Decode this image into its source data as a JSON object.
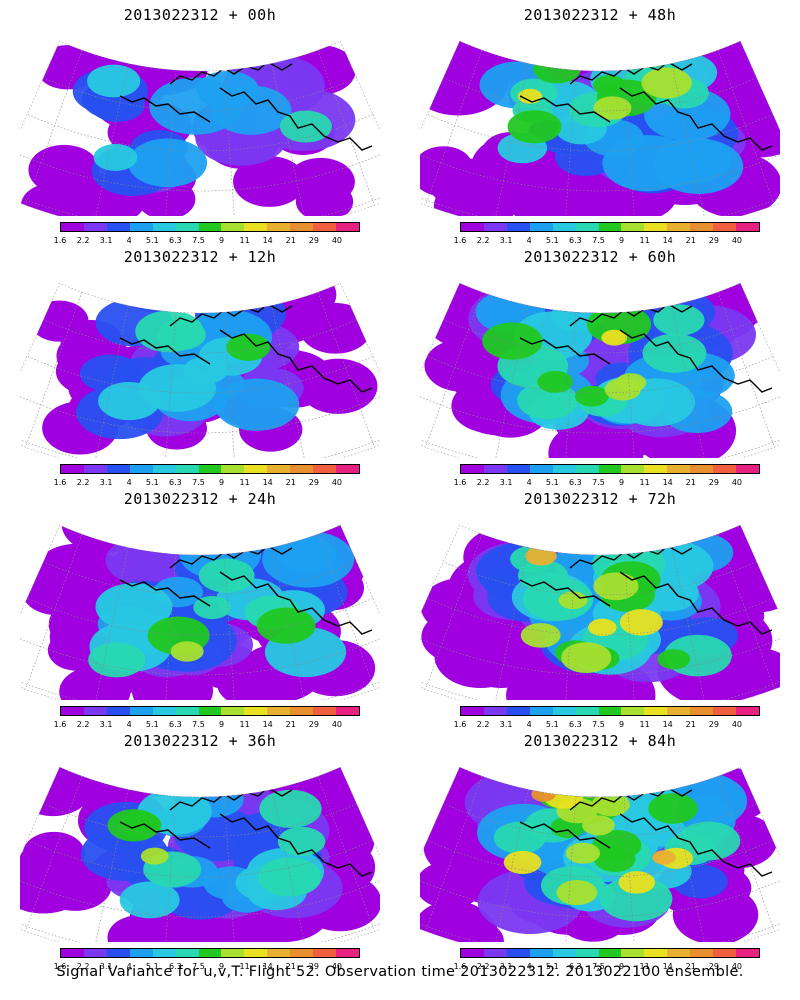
{
  "panels": [
    {
      "title": "2013022312 + 00h",
      "col": 0,
      "row": 0,
      "coverage": 0.3,
      "intensity": 0.35
    },
    {
      "title": "2013022312 + 12h",
      "col": 0,
      "row": 1,
      "coverage": 0.45,
      "intensity": 0.45
    },
    {
      "title": "2013022312 + 24h",
      "col": 0,
      "row": 2,
      "coverage": 0.6,
      "intensity": 0.52
    },
    {
      "title": "2013022312 + 36h",
      "col": 0,
      "row": 3,
      "coverage": 0.7,
      "intensity": 0.6
    },
    {
      "title": "2013022312 + 48h",
      "col": 1,
      "row": 0,
      "coverage": 0.8,
      "intensity": 0.65
    },
    {
      "title": "2013022312 + 60h",
      "col": 1,
      "row": 1,
      "coverage": 0.85,
      "intensity": 0.7
    },
    {
      "title": "2013022312 + 72h",
      "col": 1,
      "row": 2,
      "coverage": 0.9,
      "intensity": 0.78
    },
    {
      "title": "2013022312 + 84h",
      "col": 1,
      "row": 3,
      "coverage": 0.92,
      "intensity": 0.85
    }
  ],
  "colorbar": {
    "colors": [
      "#a000e0",
      "#7a38f0",
      "#2850f0",
      "#1ea0f0",
      "#28c8e0",
      "#28d8b0",
      "#20c820",
      "#a8e030",
      "#e8e020",
      "#e8b030",
      "#e89030",
      "#f06040",
      "#e82080"
    ],
    "labels": [
      "1.6",
      "2.2",
      "3.1",
      "4",
      "5.1",
      "6.3",
      "7.5",
      "9",
      "11",
      "14",
      "21",
      "29",
      "40"
    ]
  },
  "caption": "Signal Variance for u,v,T. Flight 52. Observation time 2013022312. 2013022100 ensemble."
}
